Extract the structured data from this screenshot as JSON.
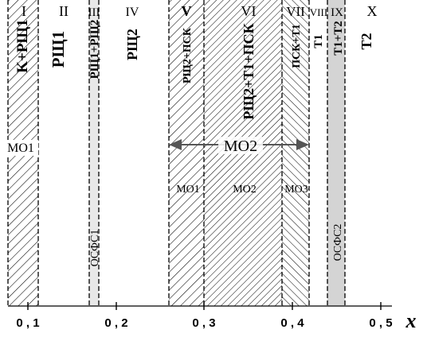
{
  "regions": [
    {
      "numeral": "I",
      "label": "K+PЩ1"
    },
    {
      "numeral": "II",
      "label": "PЩ1"
    },
    {
      "numeral": "III",
      "label": "PЩ1+PЩ2"
    },
    {
      "numeral": "IV",
      "label": "PЩ2"
    },
    {
      "numeral": "V",
      "label": "PЩ2+ПСК"
    },
    {
      "numeral": "VI",
      "label": "PЩ2+T1+ПСК"
    },
    {
      "numeral": "VII",
      "label": "ПСК+T1"
    },
    {
      "numeral": "VIII",
      "label": "T1"
    },
    {
      "numeral": "IX",
      "label": "T1+T2"
    },
    {
      "numeral": "X",
      "label": "T2"
    }
  ],
  "phase_labels": {
    "mo1_left": "MO1",
    "mo2_arrow": "MO2",
    "mo1_v": "MO1",
    "mo2_vi": "MO2",
    "mo3_vii": "MO3",
    "osfs1": "OСФС1",
    "osfs2": "OСФС2"
  },
  "axis": {
    "label": "x",
    "ticks": [
      {
        "value": 0.1,
        "label": "0 , 1"
      },
      {
        "value": 0.2,
        "label": "0 , 2"
      },
      {
        "value": 0.3,
        "label": "0 , 3"
      },
      {
        "value": 0.4,
        "label": "0 , 4"
      },
      {
        "value": 0.5,
        "label": "0 , 5"
      }
    ]
  },
  "colors": {
    "hatch": "#000000",
    "shade": "#cccccc",
    "arrow": "#555555",
    "text": "#000000"
  }
}
